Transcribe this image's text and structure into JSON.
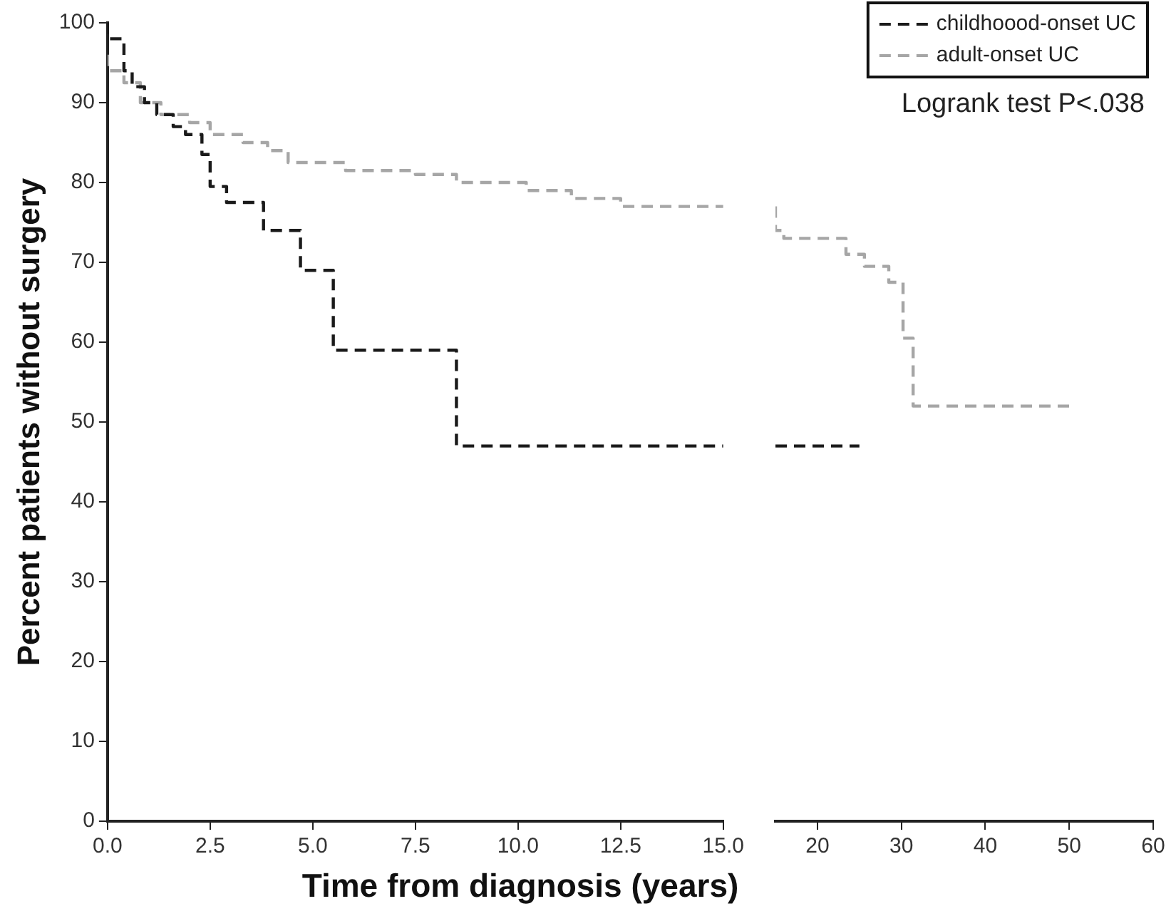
{
  "chart_data": [
    {
      "type": "step",
      "ylabel": "Percent patients without surgery",
      "xlabel": "Time from diagnosis (years)",
      "line_style": "dashed",
      "marker": "none",
      "xlim": [
        0,
        15
      ],
      "xticks": [
        {
          "value": 0,
          "label": "0.0"
        },
        2.5,
        {
          "value": 5,
          "label": "5.0"
        },
        7.5,
        {
          "value": 10,
          "label": "10.0"
        },
        12.5,
        {
          "value": 15,
          "label": "15.0"
        }
      ],
      "ylim": [
        0,
        100
      ],
      "yticks": [
        0,
        10,
        20,
        30,
        40,
        50,
        60,
        70,
        80,
        90,
        100
      ],
      "series": [
        {
          "color": "#1a1a1a",
          "x": [
            0,
            0.4,
            0.6,
            0.9,
            1.2,
            1.6,
            1.9,
            2.3,
            2.5,
            2.9,
            3.8,
            4.7,
            5.5,
            8.5,
            11.05,
            15
          ],
          "values": [
            100,
            98,
            94,
            92,
            90,
            88.5,
            87,
            86,
            83.5,
            79.5,
            77.5,
            74,
            69,
            59,
            47,
            47
          ]
        },
        {
          "color": "#a6a6a6",
          "x": [
            0,
            0.4,
            0.8,
            1.3,
            2.0,
            2.5,
            3.3,
            3.9,
            4.4,
            5.8,
            7.5,
            8.5,
            10.2,
            11.3,
            12.5,
            15
          ],
          "values": [
            96,
            94,
            92.5,
            90,
            88.5,
            87.5,
            86,
            85,
            84,
            82.5,
            81.5,
            81,
            80,
            79,
            78,
            77
          ]
        }
      ]
    },
    {
      "type": "step",
      "line_style": "dashed",
      "marker": "none",
      "legend": "top right",
      "tick_labels": "x",
      "annotations": [
        "Logrank test P<.038"
      ],
      "xlim": [
        15,
        60
      ],
      "xticks": [
        20,
        30,
        40,
        50,
        60
      ],
      "ylim": [
        0,
        100
      ],
      "series": [
        {
          "name": "childhoood-onset UC",
          "color": "#1a1a1a",
          "x": [
            15,
            25
          ],
          "values": [
            47,
            47
          ]
        },
        {
          "name": "adult-onset UC",
          "color": "#a6a6a6",
          "x": [
            15,
            16,
            23.4,
            25.6,
            28.5,
            30.2,
            31.4,
            44.5,
            50.5
          ],
          "values": [
            77,
            74,
            73,
            71,
            69.5,
            67.5,
            60.5,
            52,
            52
          ]
        }
      ]
    }
  ]
}
